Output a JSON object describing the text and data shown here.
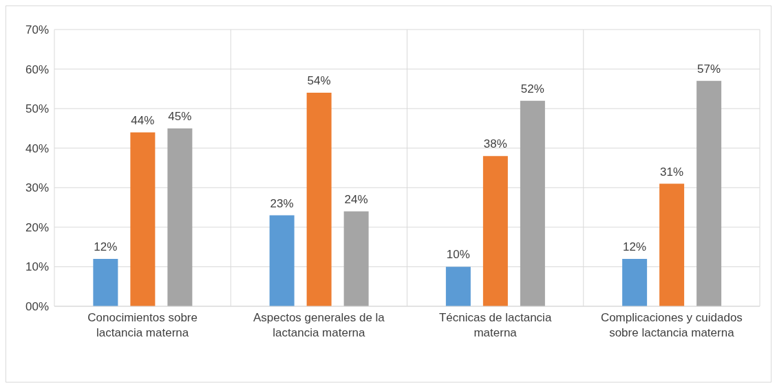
{
  "chart_data": {
    "type": "bar",
    "categories": [
      "Conocimientos sobre lactancia materna",
      "Aspectos generales de la lactancia materna",
      "Técnicas de lactancia materna",
      "Complicaciones y cuidados sobre lactancia materna"
    ],
    "series": [
      {
        "color": "#5b9bd5",
        "values": [
          12,
          23,
          10,
          12
        ],
        "value_labels": [
          "12%",
          "23%",
          "10%",
          "12%"
        ]
      },
      {
        "color": "#ed7d31",
        "values": [
          44,
          54,
          38,
          31
        ],
        "value_labels": [
          "44%",
          "54%",
          "38%",
          "31%"
        ]
      },
      {
        "color": "#a5a5a5",
        "values": [
          45,
          24,
          52,
          57
        ],
        "value_labels": [
          "45%",
          "24%",
          "52%",
          "57%"
        ]
      }
    ],
    "ylim": [
      0,
      70
    ],
    "yticks": [
      {
        "value": 0,
        "label": "00%"
      },
      {
        "value": 10,
        "label": "10%"
      },
      {
        "value": 20,
        "label": "20%"
      },
      {
        "value": 30,
        "label": "30%"
      },
      {
        "value": 40,
        "label": "40%"
      },
      {
        "value": 50,
        "label": "50%"
      },
      {
        "value": 60,
        "label": "60%"
      },
      {
        "value": 70,
        "label": "70%"
      }
    ],
    "grid": true,
    "legend": false
  }
}
